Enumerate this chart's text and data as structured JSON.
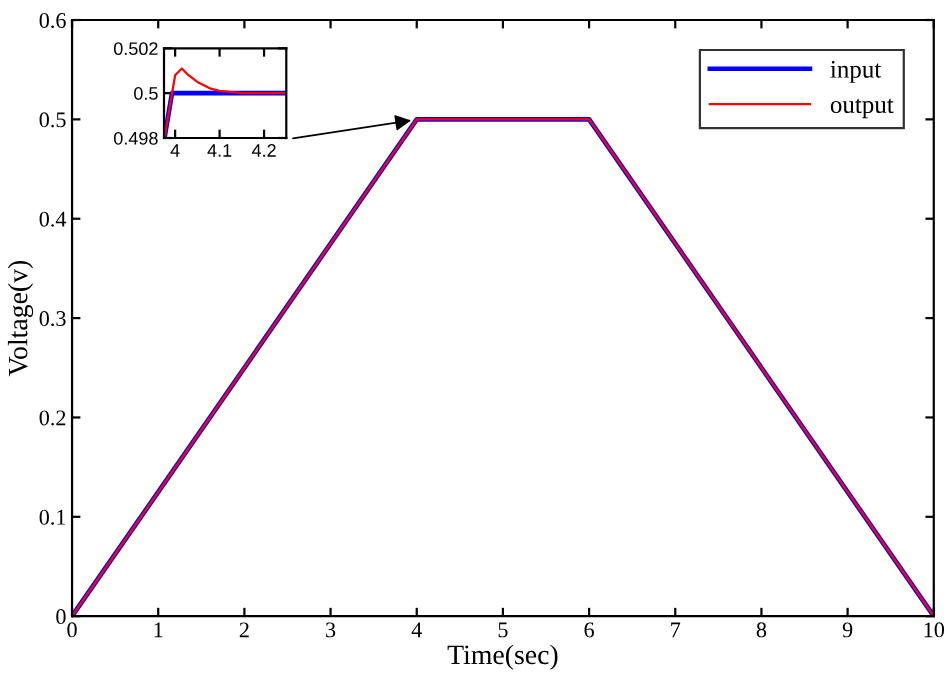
{
  "chart_data": [
    {
      "type": "line",
      "xlabel": "Time(sec)",
      "ylabel": "Voltage(v)",
      "xlim": [
        0,
        10
      ],
      "ylim": [
        0,
        0.6
      ],
      "xticks": [
        0,
        1,
        2,
        3,
        4,
        5,
        6,
        7,
        8,
        9,
        10
      ],
      "yticks": [
        0,
        0.1,
        0.2,
        0.3,
        0.4,
        0.5,
        0.6
      ],
      "legend": "top right",
      "grid": false,
      "series": [
        {
          "name": "input",
          "color": "#0000ff",
          "x": [
            0,
            4,
            6,
            10
          ],
          "values": [
            0,
            0.5,
            0.5,
            0
          ]
        },
        {
          "name": "output",
          "color": "#ff0000",
          "x": [
            0,
            4,
            6,
            10
          ],
          "values": [
            0,
            0.5,
            0.5,
            0
          ]
        }
      ]
    },
    {
      "type": "line",
      "xlim": [
        3.975,
        4.25
      ],
      "ylim": [
        0.498,
        0.502
      ],
      "xticks": [
        4,
        4.1,
        4.2
      ],
      "yticks": [
        0.498,
        0.5,
        0.502
      ],
      "grid": false,
      "series": [
        {
          "color": "#0000ff",
          "x": [
            3.976,
            3.993,
            4.25
          ],
          "values": [
            0.498,
            0.5,
            0.5
          ]
        },
        {
          "color": "#ff0000",
          "x": [
            3.976,
            4.0,
            4.015,
            4.03,
            4.05,
            4.08,
            4.1,
            4.15,
            4.2,
            4.25
          ],
          "values": [
            0.498,
            0.5008,
            0.5011,
            0.5008,
            0.5005,
            0.5002,
            0.5001,
            0.5,
            0.5,
            0.5
          ]
        }
      ]
    }
  ]
}
